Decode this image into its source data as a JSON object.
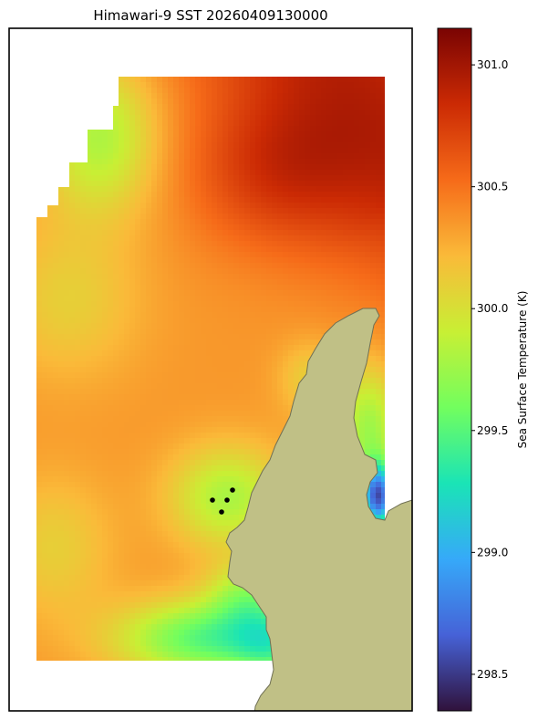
{
  "chart_data": {
    "type": "heatmap",
    "title": "Himawari-9 SST 20260409130000",
    "colorbar": {
      "label": "Sea Surface Temperature (K)",
      "ticks": [
        "298.5",
        "299.0",
        "299.5",
        "300.0",
        "300.5",
        "301.0"
      ],
      "range": [
        298.35,
        301.15
      ],
      "colormap": [
        "#30123b",
        "#4662d7",
        "#36a9f9",
        "#1ae4b6",
        "#72fe5e",
        "#c8ef34",
        "#faba39",
        "#f66b19",
        "#cb2a04",
        "#7a0403"
      ]
    },
    "field_description_values": {
      "max": 301.1,
      "min": 298.4
    },
    "land_color": "#c0c086",
    "markers": {
      "count": 4,
      "color": "#000000"
    }
  }
}
